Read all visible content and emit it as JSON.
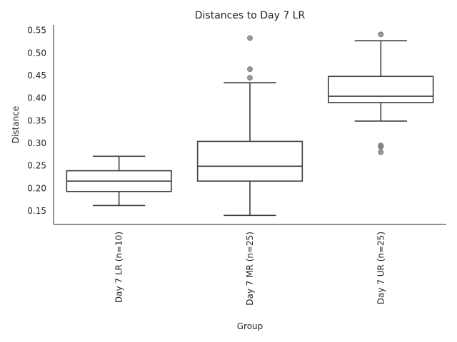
{
  "chart_data": {
    "type": "box",
    "title": "Distances to Day 7 LR",
    "xlabel": "Group",
    "ylabel": "Distance",
    "ylim": [
      0.12,
      0.562
    ],
    "yticks": [
      0.15,
      0.2,
      0.25,
      0.3,
      0.35,
      0.4,
      0.45,
      0.5,
      0.55
    ],
    "ytick_labels": [
      "0.15",
      "0.20",
      "0.25",
      "0.30",
      "0.35",
      "0.40",
      "0.45",
      "0.50",
      "0.55"
    ],
    "grid": false,
    "categories": [
      "Day 7 LR (n=10)",
      "Day 7 MR (n=25)",
      "Day 7 UR (n=25)"
    ],
    "boxes": [
      {
        "whislo": 0.162,
        "q1": 0.193,
        "med": 0.216,
        "q3": 0.239,
        "whishi": 0.271,
        "fliers": []
      },
      {
        "whislo": 0.14,
        "q1": 0.216,
        "med": 0.249,
        "q3": 0.304,
        "whishi": 0.434,
        "fliers": [
          0.445,
          0.464,
          0.533
        ]
      },
      {
        "whislo": 0.349,
        "q1": 0.39,
        "med": 0.404,
        "q3": 0.448,
        "whishi": 0.527,
        "fliers": [
          0.28,
          0.292,
          0.295,
          0.541
        ]
      }
    ]
  }
}
